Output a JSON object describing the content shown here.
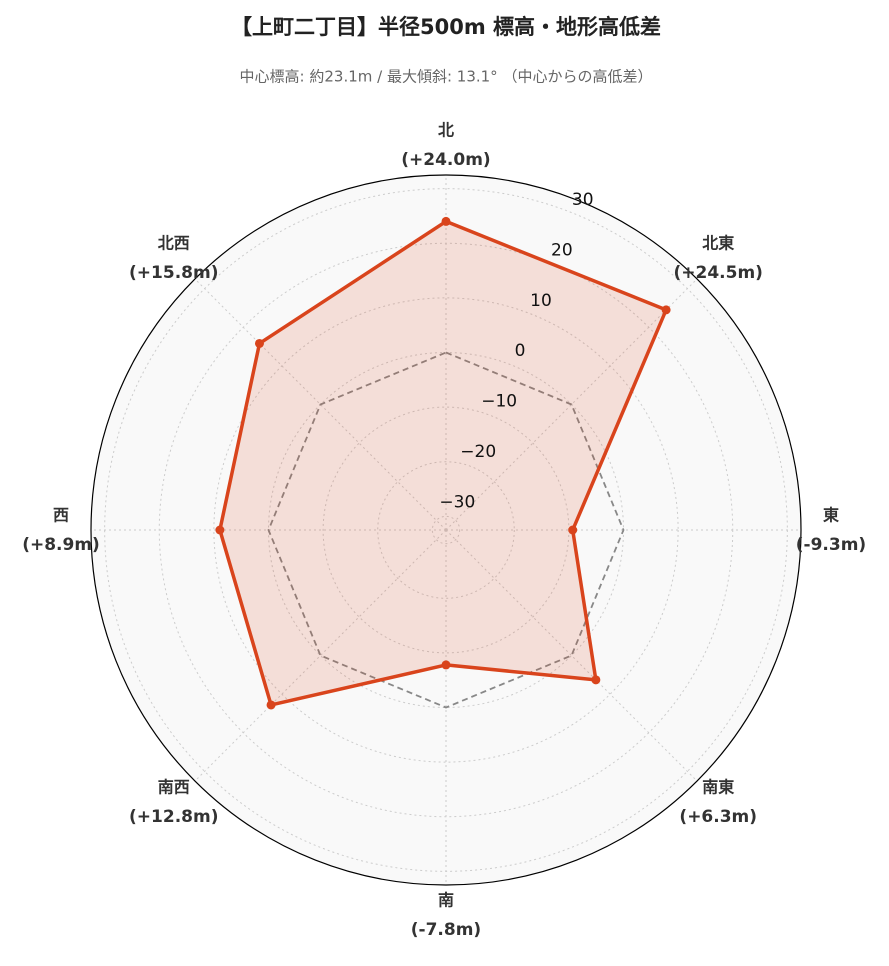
{
  "chart_data": {
    "type": "radar",
    "title": "【上町二丁目】半径500m 標高・地形高低差",
    "subtitle": "中心標高: 約23.1m / 最大傾斜: 13.1° （中心からの高低差）",
    "categories": [
      "北",
      "北東",
      "東",
      "南東",
      "南",
      "南西",
      "西",
      "北西"
    ],
    "values": [
      24.0,
      24.5,
      -9.3,
      6.3,
      -7.8,
      12.8,
      8.9,
      15.8
    ],
    "value_labels": [
      "(+24.0m)",
      "(+24.5m)",
      "(-9.3m)",
      "(+6.3m)",
      "(-7.8m)",
      "(+12.8m)",
      "(+8.9m)",
      "(+15.8m)"
    ],
    "color": "#d9441c",
    "baseline": 0,
    "ylim": [
      -32.5,
      32.5
    ],
    "yticks": [
      {
        "value": -30,
        "label": "−30"
      },
      {
        "value": -20,
        "label": "−20"
      },
      {
        "value": -10,
        "label": "−10"
      },
      0,
      10,
      20,
      30
    ],
    "grid": true
  }
}
